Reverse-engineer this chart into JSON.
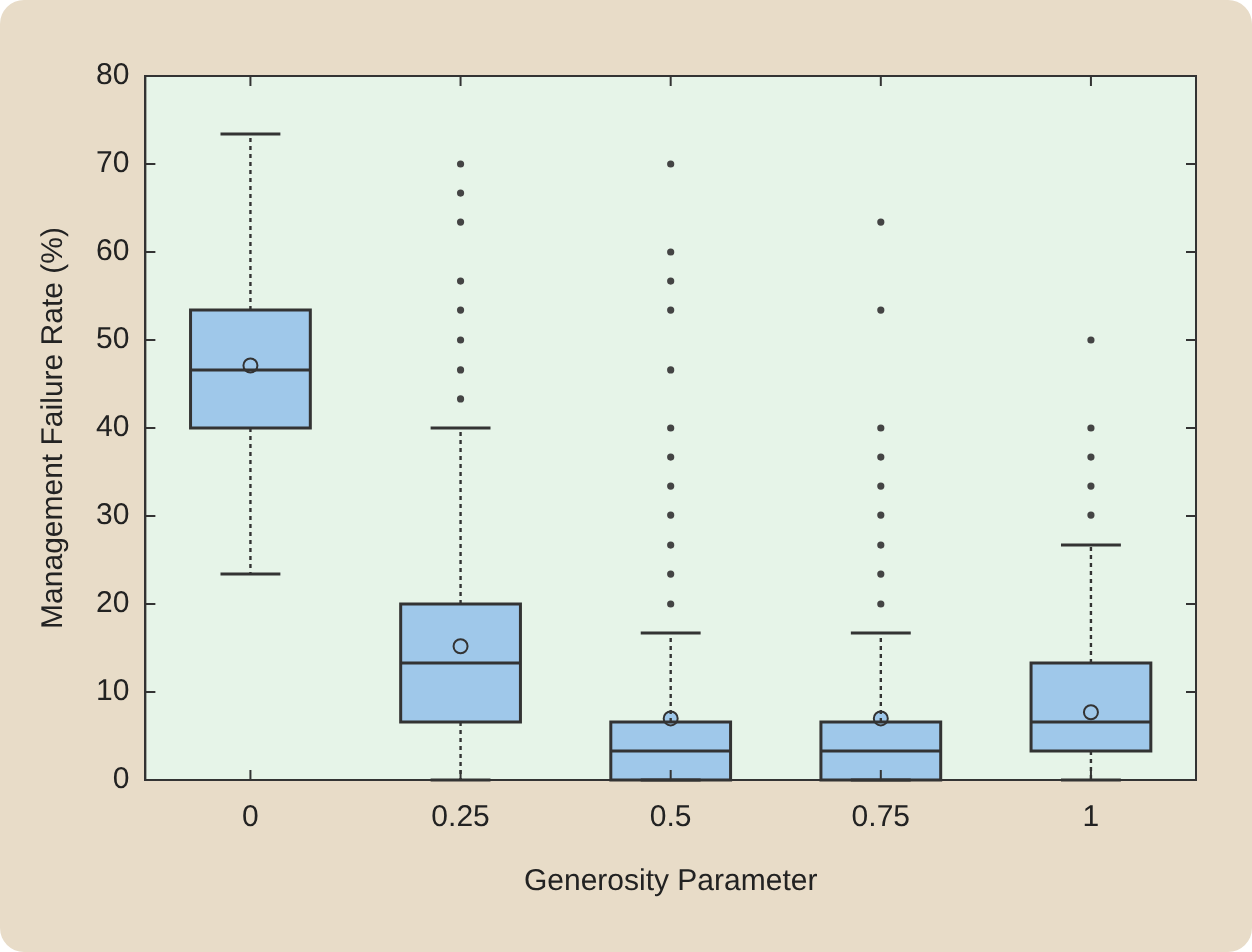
{
  "chart_data": {
    "type": "box",
    "xlabel": "Generosity Parameter",
    "ylabel": "Management Failure Rate (%)",
    "categories": [
      "0",
      "0.25",
      "0.5",
      "0.75",
      "1"
    ],
    "color": "#9fc8ea",
    "boxes": [
      {
        "low": 23.4,
        "q1": 40,
        "median": 46.6,
        "q3": 53.4,
        "high": 73.4,
        "mean": 47.1
      },
      {
        "low": 0,
        "q1": 6.6,
        "median": 13.3,
        "q3": 20,
        "high": 40,
        "mean": 15.2,
        "outliers": [
          43.3,
          46.6,
          50,
          53.4,
          56.7,
          63.4,
          66.7,
          70
        ]
      },
      {
        "low": 0,
        "q1": 0,
        "median": 3.3,
        "q3": 6.6,
        "high": 16.7,
        "mean": 7,
        "outliers": [
          20,
          23.4,
          26.7,
          30.1,
          33.4,
          36.7,
          40,
          46.6,
          53.4,
          56.7,
          60,
          70
        ]
      },
      {
        "low": 0,
        "q1": 0,
        "median": 3.3,
        "q3": 6.6,
        "high": 16.7,
        "mean": 7,
        "outliers": [
          20,
          23.4,
          26.7,
          30.1,
          33.4,
          36.7,
          40,
          53.4,
          63.4
        ]
      },
      {
        "low": 0,
        "q1": 3.3,
        "median": 6.6,
        "q3": 13.3,
        "high": 26.7,
        "mean": 7.7,
        "outliers": [
          30.1,
          33.4,
          36.7,
          40,
          50
        ]
      }
    ],
    "ylim": [
      0,
      80
    ],
    "yticks": [
      0,
      10,
      20,
      30,
      40,
      50,
      60,
      70,
      80
    ],
    "grid": false,
    "legend": false,
    "marker": "circle"
  }
}
